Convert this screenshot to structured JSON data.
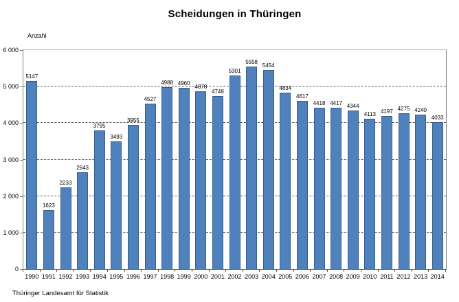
{
  "title": "Scheidungen in Thüringen",
  "y_axis_unit": "Anzahl",
  "source": "Thüringer Landesamt für Statistik",
  "colors": {
    "bar_fill": "#4f81bd",
    "bar_border": "#385d8a",
    "gridline": "#595959",
    "axis": "#7f7f7f",
    "plot_top_border": "#b3b3b3",
    "text": "#000000",
    "background": "#ffffff"
  },
  "chart_data": {
    "type": "bar",
    "title": "Scheidungen in Thüringen",
    "xlabel": "",
    "ylabel": "Anzahl",
    "categories": [
      "1990",
      "1991",
      "1992",
      "1993",
      "1994",
      "1995",
      "1996",
      "1997",
      "1998",
      "1999",
      "2000",
      "2001",
      "2002",
      "2003",
      "2004",
      "2005",
      "2006",
      "2007",
      "2008",
      "2009",
      "2010",
      "2011",
      "2012",
      "2013",
      "2014"
    ],
    "values": [
      5147,
      1623,
      2233,
      2643,
      3795,
      3493,
      3955,
      4527,
      4988,
      4960,
      4878,
      4748,
      5301,
      5558,
      5454,
      4834,
      4617,
      4418,
      4417,
      4344,
      4113,
      4197,
      4275,
      4240,
      4033
    ],
    "ylim": [
      0,
      6000
    ],
    "y_ticks": [
      0,
      1000,
      2000,
      3000,
      4000,
      5000,
      6000
    ],
    "y_tick_labels": [
      "0",
      "1 000",
      "2 000",
      "3 000",
      "4 000",
      "5 000",
      "6 000"
    ],
    "gridlines_at": [
      1000,
      2000,
      3000,
      4000,
      5000
    ],
    "grid": "horizontal-dashed",
    "legend": "none",
    "data_labels": true,
    "source": "Thüringer Landesamt für Statistik"
  }
}
